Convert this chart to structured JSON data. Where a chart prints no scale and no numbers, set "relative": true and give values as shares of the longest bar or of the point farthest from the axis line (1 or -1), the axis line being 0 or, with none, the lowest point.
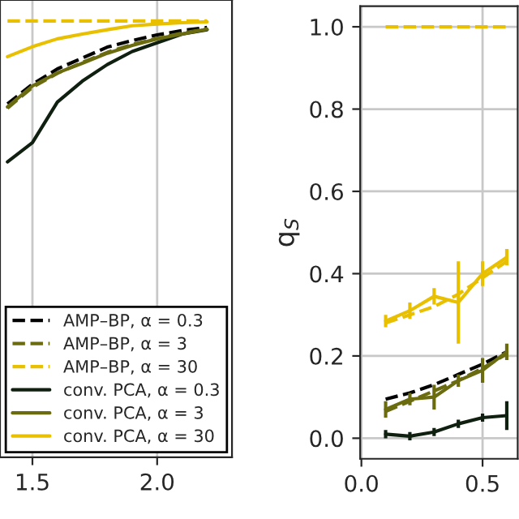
{
  "chart_data": [
    {
      "type": "line",
      "relative": true,
      "xlim": [
        1.37,
        2.3
      ],
      "xticks": [
        1.5,
        {
          "value": 2,
          "label": "2.0"
        }
      ],
      "grid": "x",
      "legend": "bottom right",
      "series": [
        {
          "name": "AMP–BP, α = 0.3",
          "color": "#000000",
          "line_style": "dashed",
          "x": [
            1.4,
            1.5,
            1.6,
            1.7,
            1.8,
            1.9,
            2.0,
            2.1,
            2.2
          ],
          "values": [
            0.81,
            0.855,
            0.89,
            0.915,
            0.94,
            0.955,
            0.968,
            0.978,
            0.985
          ]
        },
        {
          "name": "AMP–BP, α = 3",
          "color": "#6b6b10",
          "line_style": "dashed",
          "x": [
            1.4,
            1.5,
            1.6,
            1.7,
            1.8,
            1.9,
            2.0,
            2.1,
            2.2
          ],
          "values": [
            0.8,
            0.848,
            0.88,
            0.905,
            0.928,
            0.946,
            0.96,
            0.972,
            0.982
          ]
        },
        {
          "name": "AMP–BP, α = 30",
          "color": "#e8c000",
          "line_style": "dashed",
          "x": [
            1.4,
            1.5,
            1.6,
            1.7,
            1.8,
            1.9,
            2.0,
            2.1,
            2.2
          ],
          "values": [
            1,
            1,
            1,
            1,
            1,
            1,
            1,
            1,
            1
          ]
        },
        {
          "name": "conv. PCA, α = 0.3",
          "color": "#102010",
          "line_style": "solid",
          "x": [
            1.4,
            1.5,
            1.6,
            1.7,
            1.8,
            1.9,
            2.0,
            2.1,
            2.2
          ],
          "values": [
            0.677,
            0.721,
            0.814,
            0.862,
            0.9,
            0.93,
            0.95,
            0.97,
            0.98
          ]
        },
        {
          "name": "conv. PCA, α = 3",
          "color": "#6b6b10",
          "line_style": "solid",
          "x": [
            1.4,
            1.5,
            1.6,
            1.7,
            1.8,
            1.9,
            2.0,
            2.1,
            2.2
          ],
          "values": [
            0.803,
            0.851,
            0.881,
            0.903,
            0.926,
            0.944,
            0.959,
            0.97,
            0.981
          ]
        },
        {
          "name": "conv. PCA, α = 30",
          "color": "#e8c000",
          "line_style": "solid",
          "x": [
            1.4,
            1.5,
            1.6,
            1.7,
            1.8,
            1.9,
            2.0,
            2.1,
            2.2
          ],
          "values": [
            0.918,
            0.941,
            0.959,
            0.97,
            0.98,
            0.989,
            0.993,
            0.996,
            0.998
          ]
        }
      ]
    },
    {
      "type": "line",
      "ylabel": "q$_{S}$",
      "xlim": [
        -0.005,
        0.645
      ],
      "xticks": [
        {
          "value": 0,
          "label": "0.0"
        },
        0.5
      ],
      "ylim": [
        -0.05,
        1.05
      ],
      "yticks": [
        {
          "value": 0,
          "label": "0.0"
        },
        0.2,
        0.4,
        0.6,
        0.8,
        {
          "value": 1,
          "label": "1.0"
        }
      ],
      "grid": true,
      "legend": false,
      "series": [
        {
          "color": "#000000",
          "line_style": "dashed",
          "x": [
            0.1,
            0.2,
            0.3,
            0.4,
            0.5,
            0.6
          ],
          "values": [
            0.095,
            0.11,
            0.13,
            0.155,
            0.18,
            0.21
          ]
        },
        {
          "color": "#6b6b10",
          "line_style": "dashed",
          "x": [
            0.1,
            0.2,
            0.3,
            0.4,
            0.5,
            0.6
          ],
          "values": [
            0.065,
            0.09,
            0.115,
            0.14,
            0.17,
            0.205
          ]
        },
        {
          "color": "#e8c000",
          "line_style": "dashed",
          "x": [
            0.1,
            0.2,
            0.3,
            0.4,
            0.5,
            0.6
          ],
          "values": [
            0.28,
            0.3,
            0.32,
            0.35,
            0.39,
            0.43
          ]
        },
        {
          "color": "#e8c000",
          "line_style": "dashed",
          "x": [
            0.1,
            0.2,
            0.3,
            0.4,
            0.5,
            0.6
          ],
          "values": [
            1.0,
            1.0,
            1.0,
            1.0,
            1.0,
            1.0
          ]
        },
        {
          "color": "#102010",
          "line_style": "solid",
          "x": [
            0.1,
            0.2,
            0.3,
            0.4,
            0.5,
            0.6
          ],
          "values": [
            0.01,
            0.005,
            0.015,
            0.035,
            0.05,
            0.055
          ],
          "errors": [
            0.01,
            0.01,
            0.01,
            0.01,
            0.01,
            0.035
          ]
        },
        {
          "color": "#6b6b10",
          "line_style": "solid",
          "x": [
            0.1,
            0.2,
            0.3,
            0.4,
            0.5,
            0.6
          ],
          "values": [
            0.07,
            0.095,
            0.1,
            0.14,
            0.165,
            0.21
          ],
          "errors": [
            0.02,
            0.015,
            0.03,
            0.015,
            0.03,
            0.02
          ]
        },
        {
          "color": "#e8c000",
          "line_style": "solid",
          "x": [
            0.1,
            0.2,
            0.3,
            0.4,
            0.5,
            0.6
          ],
          "values": [
            0.285,
            0.31,
            0.345,
            0.33,
            0.4,
            0.44
          ],
          "errors": [
            0.015,
            0.02,
            0.02,
            0.1,
            0.03,
            0.02
          ]
        }
      ]
    }
  ]
}
